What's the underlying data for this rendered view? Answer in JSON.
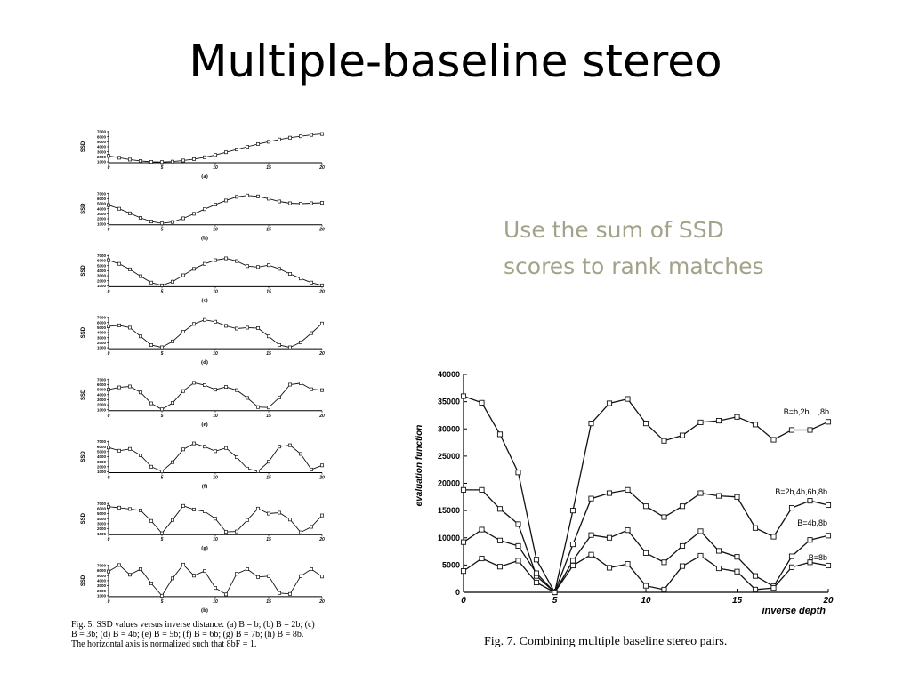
{
  "slide": {
    "title": "Multiple-baseline stereo",
    "bullet": "Use the sum of SSD scores to rank matches"
  },
  "fig5": {
    "caption_line1": "Fig. 5.   SSD values versus inverse distance: (a) B = b; (b) B = 2b; (c)",
    "caption_line2": "B = 3b; (d) B = 4b; (e) B = 5b; (f) B = 6b; (g) B = 7b; (h) B = 8b.",
    "caption_line3": "The horizontal axis is normalized such that 8bF = 1.",
    "ylabel": "SSD",
    "y_ticks": [
      "7000",
      "6000",
      "5000",
      "4000",
      "3000",
      "2000",
      "1000"
    ],
    "x_ticks": [
      "0",
      "5",
      "10",
      "15",
      "20"
    ]
  },
  "fig7": {
    "caption": "Fig. 7.   Combining multiple baseline stereo pairs.",
    "ylabel": "evaluation function",
    "xlabel": "inverse depth",
    "y_ticks": [
      "0",
      "5000",
      "10000",
      "15000",
      "20000",
      "25000",
      "30000",
      "35000",
      "40000"
    ],
    "x_ticks": [
      "0",
      "5",
      "10",
      "15",
      "20"
    ]
  },
  "chart_data": [
    {
      "type": "line",
      "panel": "(a)",
      "xlim": [
        0,
        20
      ],
      "ylim": [
        0,
        7000
      ],
      "x": [
        0,
        1,
        2,
        3,
        4,
        5,
        6,
        7,
        8,
        9,
        10,
        11,
        12,
        13,
        14,
        15,
        16,
        17,
        18,
        19,
        20
      ],
      "series": [
        {
          "values": [
            1500,
            1100,
            700,
            400,
            200,
            150,
            250,
            500,
            800,
            1200,
            1700,
            2300,
            2900,
            3500,
            4100,
            4600,
            5100,
            5500,
            5800,
            6100,
            6300
          ]
        }
      ]
    },
    {
      "type": "line",
      "panel": "(b)",
      "xlim": [
        0,
        20
      ],
      "ylim": [
        0,
        7000
      ],
      "x": [
        0,
        1,
        2,
        3,
        4,
        5,
        6,
        7,
        8,
        9,
        10,
        11,
        12,
        13,
        14,
        15,
        16,
        17,
        18,
        19,
        20
      ],
      "series": [
        {
          "values": [
            4300,
            3500,
            2500,
            1500,
            700,
            300,
            600,
            1400,
            2400,
            3400,
            4400,
            5300,
            6100,
            6400,
            6200,
            5700,
            5100,
            4700,
            4600,
            4700,
            4800
          ]
        }
      ]
    },
    {
      "type": "line",
      "panel": "(c)",
      "xlim": [
        0,
        20
      ],
      "ylim": [
        0,
        7000
      ],
      "x": [
        0,
        1,
        2,
        3,
        4,
        5,
        6,
        7,
        8,
        9,
        10,
        11,
        12,
        13,
        14,
        15,
        16,
        17,
        18,
        19,
        20
      ],
      "series": [
        {
          "values": [
            5800,
            5000,
            3800,
            2300,
            900,
            300,
            1100,
            2500,
            3900,
            5000,
            5800,
            6200,
            5600,
            4500,
            4300,
            4700,
            3900,
            2800,
            1800,
            900,
            300
          ]
        }
      ]
    },
    {
      "type": "line",
      "panel": "(d)",
      "xlim": [
        0,
        20
      ],
      "ylim": [
        0,
        7000
      ],
      "x": [
        0,
        1,
        2,
        3,
        4,
        5,
        6,
        7,
        8,
        9,
        10,
        11,
        12,
        13,
        14,
        15,
        16,
        17,
        18,
        19,
        20
      ],
      "series": [
        {
          "values": [
            4900,
            5100,
            4600,
            2700,
            800,
            300,
            1600,
            3700,
            5400,
            6300,
            5900,
            5000,
            4400,
            4600,
            4500,
            2700,
            800,
            300,
            1400,
            3400,
            5500
          ]
        }
      ]
    },
    {
      "type": "line",
      "panel": "(e)",
      "xlim": [
        0,
        20
      ],
      "ylim": [
        0,
        7000
      ],
      "x": [
        0,
        1,
        2,
        3,
        4,
        5,
        6,
        7,
        8,
        9,
        10,
        11,
        12,
        13,
        14,
        15,
        16,
        17,
        18,
        19,
        20
      ],
      "series": [
        {
          "values": [
            4600,
            5100,
            5300,
            4000,
            1600,
            300,
            1700,
            4300,
            6100,
            5600,
            4600,
            5200,
            4500,
            2800,
            800,
            700,
            2900,
            5700,
            6000,
            4700,
            4500
          ]
        }
      ]
    },
    {
      "type": "line",
      "panel": "(f)",
      "xlim": [
        0,
        20
      ],
      "ylim": [
        0,
        7000
      ],
      "x": [
        0,
        1,
        2,
        3,
        4,
        5,
        6,
        7,
        8,
        9,
        10,
        11,
        12,
        13,
        14,
        15,
        16,
        17,
        18,
        19,
        20
      ],
      "series": [
        {
          "values": [
            5500,
            4800,
            5200,
            3800,
            1300,
            300,
            2300,
            5100,
            6400,
            5700,
            4700,
            5400,
            3400,
            900,
            300,
            2400,
            5700,
            6000,
            4100,
            700,
            1600
          ]
        }
      ]
    },
    {
      "type": "line",
      "panel": "(g)",
      "xlim": [
        0,
        20
      ],
      "ylim": [
        0,
        7000
      ],
      "x": [
        0,
        1,
        2,
        3,
        4,
        5,
        6,
        7,
        8,
        9,
        10,
        11,
        12,
        13,
        14,
        15,
        16,
        17,
        18,
        19,
        20
      ],
      "series": [
        {
          "values": [
            6100,
            5900,
            5600,
            5300,
            3000,
            300,
            3200,
            6300,
            5500,
            5100,
            3500,
            600,
            700,
            3200,
            5700,
            4600,
            4800,
            3300,
            500,
            1700,
            4200
          ]
        }
      ]
    },
    {
      "type": "line",
      "panel": "(h)",
      "xlim": [
        0,
        20
      ],
      "ylim": [
        0,
        7000
      ],
      "x": [
        0,
        1,
        2,
        3,
        4,
        5,
        6,
        7,
        8,
        9,
        10,
        11,
        12,
        13,
        14,
        15,
        16,
        17,
        18,
        19,
        20
      ],
      "series": [
        {
          "values": [
            5500,
            6900,
            4800,
            6000,
            2900,
            200,
            4000,
            7000,
            4600,
            5600,
            1900,
            500,
            5000,
            6000,
            4300,
            4500,
            800,
            600,
            4500,
            6000,
            4400
          ]
        }
      ]
    },
    {
      "type": "line",
      "panel": "Fig. 7",
      "xlim": [
        0,
        20
      ],
      "ylim": [
        0,
        40000
      ],
      "xlabel": "inverse depth",
      "ylabel": "evaluation function",
      "x": [
        0,
        1,
        2,
        3,
        4,
        5,
        6,
        7,
        8,
        9,
        10,
        11,
        12,
        13,
        14,
        15,
        16,
        17,
        18,
        19,
        20
      ],
      "series": [
        {
          "name": "B=b,2b,...,8b",
          "values": [
            36000,
            34800,
            29000,
            22000,
            6000,
            0,
            15000,
            31000,
            34700,
            35500,
            31000,
            27800,
            28800,
            31200,
            31500,
            32200,
            30800,
            28000,
            29800,
            29800,
            31300
          ]
        },
        {
          "name": "B=2b,4b,6b,8b",
          "values": [
            18800,
            18800,
            15300,
            12500,
            3000,
            0,
            8800,
            17200,
            18200,
            18800,
            15800,
            13800,
            15800,
            18200,
            17700,
            17500,
            11800,
            10200,
            15500,
            16800,
            16000
          ]
        },
        {
          "name": "B=4b,8b",
          "values": [
            9200,
            11500,
            9500,
            8500,
            3500,
            0,
            5800,
            10500,
            10000,
            11400,
            7200,
            5500,
            8500,
            11200,
            7600,
            6500,
            3000,
            1100,
            6600,
            9600,
            10400
          ]
        },
        {
          "name": "B=8b",
          "values": [
            3900,
            6200,
            4700,
            5800,
            1800,
            0,
            4900,
            6900,
            4500,
            5200,
            1200,
            500,
            4800,
            6700,
            4400,
            3800,
            500,
            800,
            4600,
            5500,
            4900
          ]
        }
      ]
    }
  ]
}
